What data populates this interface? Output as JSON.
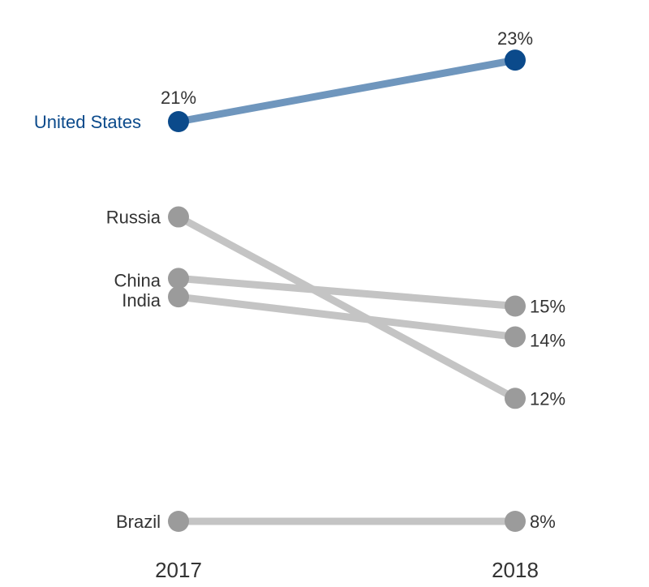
{
  "chart_data": {
    "type": "line",
    "title": "",
    "xlabel": "",
    "ylabel": "",
    "x": [
      "2017",
      "2018"
    ],
    "unit": "%",
    "series": [
      {
        "name": "United States",
        "values": [
          21,
          23
        ],
        "start_label": "21%",
        "end_label": "23%",
        "highlight": true
      },
      {
        "name": "Russia",
        "values": [
          17.9,
          12
        ],
        "start_label": "",
        "end_label": "12%",
        "highlight": false
      },
      {
        "name": "China",
        "values": [
          15.9,
          15
        ],
        "start_label": "",
        "end_label": "15%",
        "highlight": false
      },
      {
        "name": "India",
        "values": [
          15.3,
          14
        ],
        "start_label": "",
        "end_label": "14%",
        "highlight": false
      },
      {
        "name": "Brazil",
        "values": [
          8,
          8
        ],
        "start_label": "",
        "end_label": "8%",
        "highlight": false
      }
    ],
    "ylim": [
      6,
      24
    ],
    "grid": false,
    "legend": "none",
    "colors": {
      "highlight_point": "#0b4a8b",
      "highlight_line": "#6f96bd",
      "highlight_label": "#0b4a8b",
      "muted_point": "#9b9b9b",
      "muted_line": "#c4c4c4",
      "text": "#333333"
    }
  }
}
